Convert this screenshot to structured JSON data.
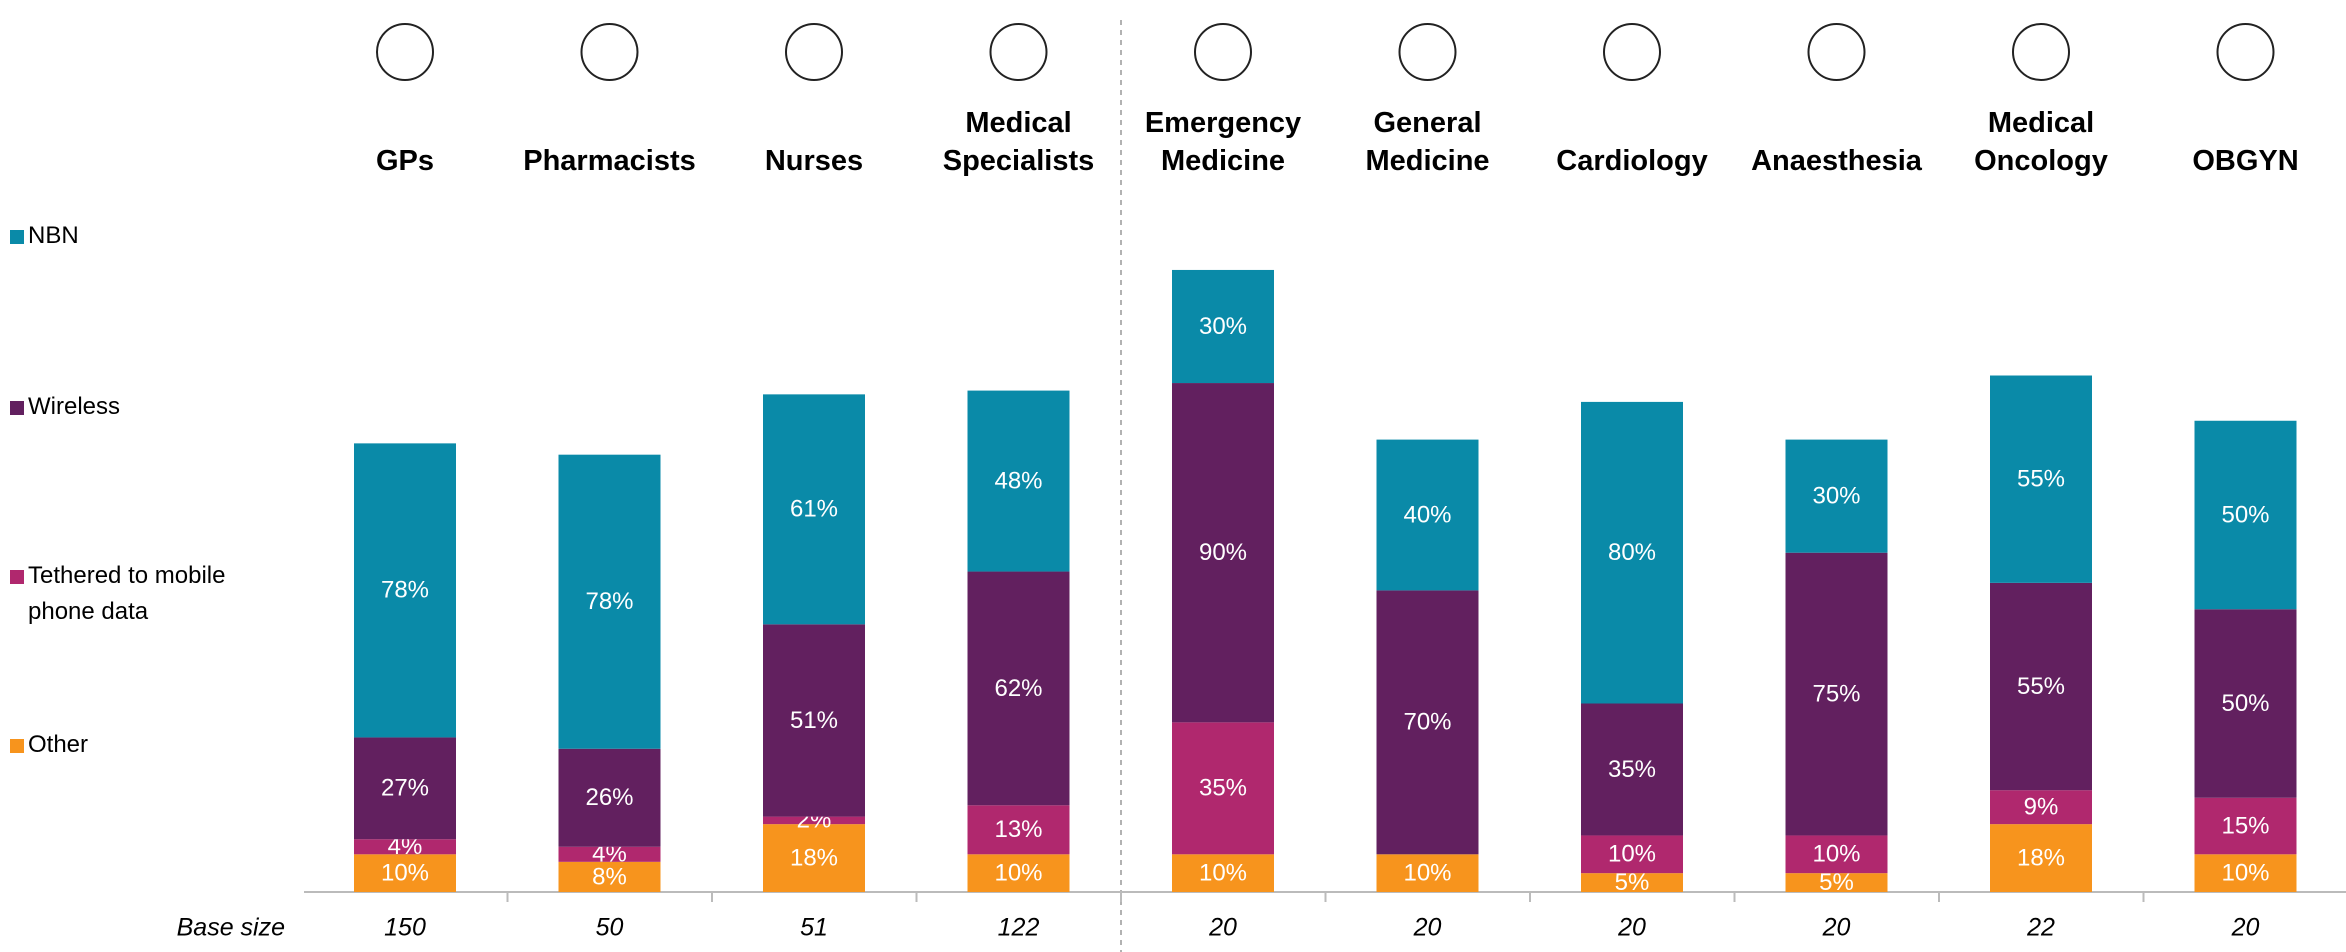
{
  "chart_data": {
    "type": "stacked_bar",
    "categories": [
      "GPs",
      "Pharmacists",
      "Nurses",
      "Medical Specialists",
      "Emergency Medicine",
      "General Medicine",
      "Cardiology",
      "Anaesthesia",
      "Medical Oncology",
      "OBGYN"
    ],
    "series": [
      {
        "name": "Other",
        "color": "#f7941d",
        "values": [
          10,
          8,
          18,
          10,
          10,
          10,
          5,
          5,
          18,
          10
        ],
        "value_labels": [
          "10%",
          "8%",
          "18%",
          "10%",
          "10%",
          "10%",
          "5%",
          "5%",
          "18%",
          "10%"
        ]
      },
      {
        "name": "Tethered to mobile phone data",
        "color": "#b0286e",
        "values": [
          4,
          4,
          2,
          13,
          35,
          0,
          10,
          10,
          9,
          15
        ],
        "value_labels": [
          "4%",
          "4%",
          "2%",
          "13%",
          "35%",
          null,
          "10%",
          "10%",
          "9%",
          "15%"
        ]
      },
      {
        "name": "Wireless",
        "color": "#62205f",
        "values": [
          27,
          26,
          51,
          62,
          90,
          70,
          35,
          75,
          55,
          50
        ],
        "value_labels": [
          "27%",
          "26%",
          "51%",
          "62%",
          "90%",
          "70%",
          "35%",
          "75%",
          "55%",
          "50%"
        ]
      },
      {
        "name": "NBN",
        "color": "#0a8aa8",
        "values": [
          78,
          78,
          61,
          48,
          30,
          40,
          80,
          30,
          55,
          50
        ],
        "value_labels": [
          "78%",
          "78%",
          "61%",
          "48%",
          "30%",
          "40%",
          "80%",
          "30%",
          "55%",
          "50%"
        ]
      }
    ],
    "base_size": {
      "label": "Base size",
      "values": [
        150,
        50,
        51,
        122,
        20,
        20,
        20,
        20,
        22,
        20
      ]
    }
  }
}
